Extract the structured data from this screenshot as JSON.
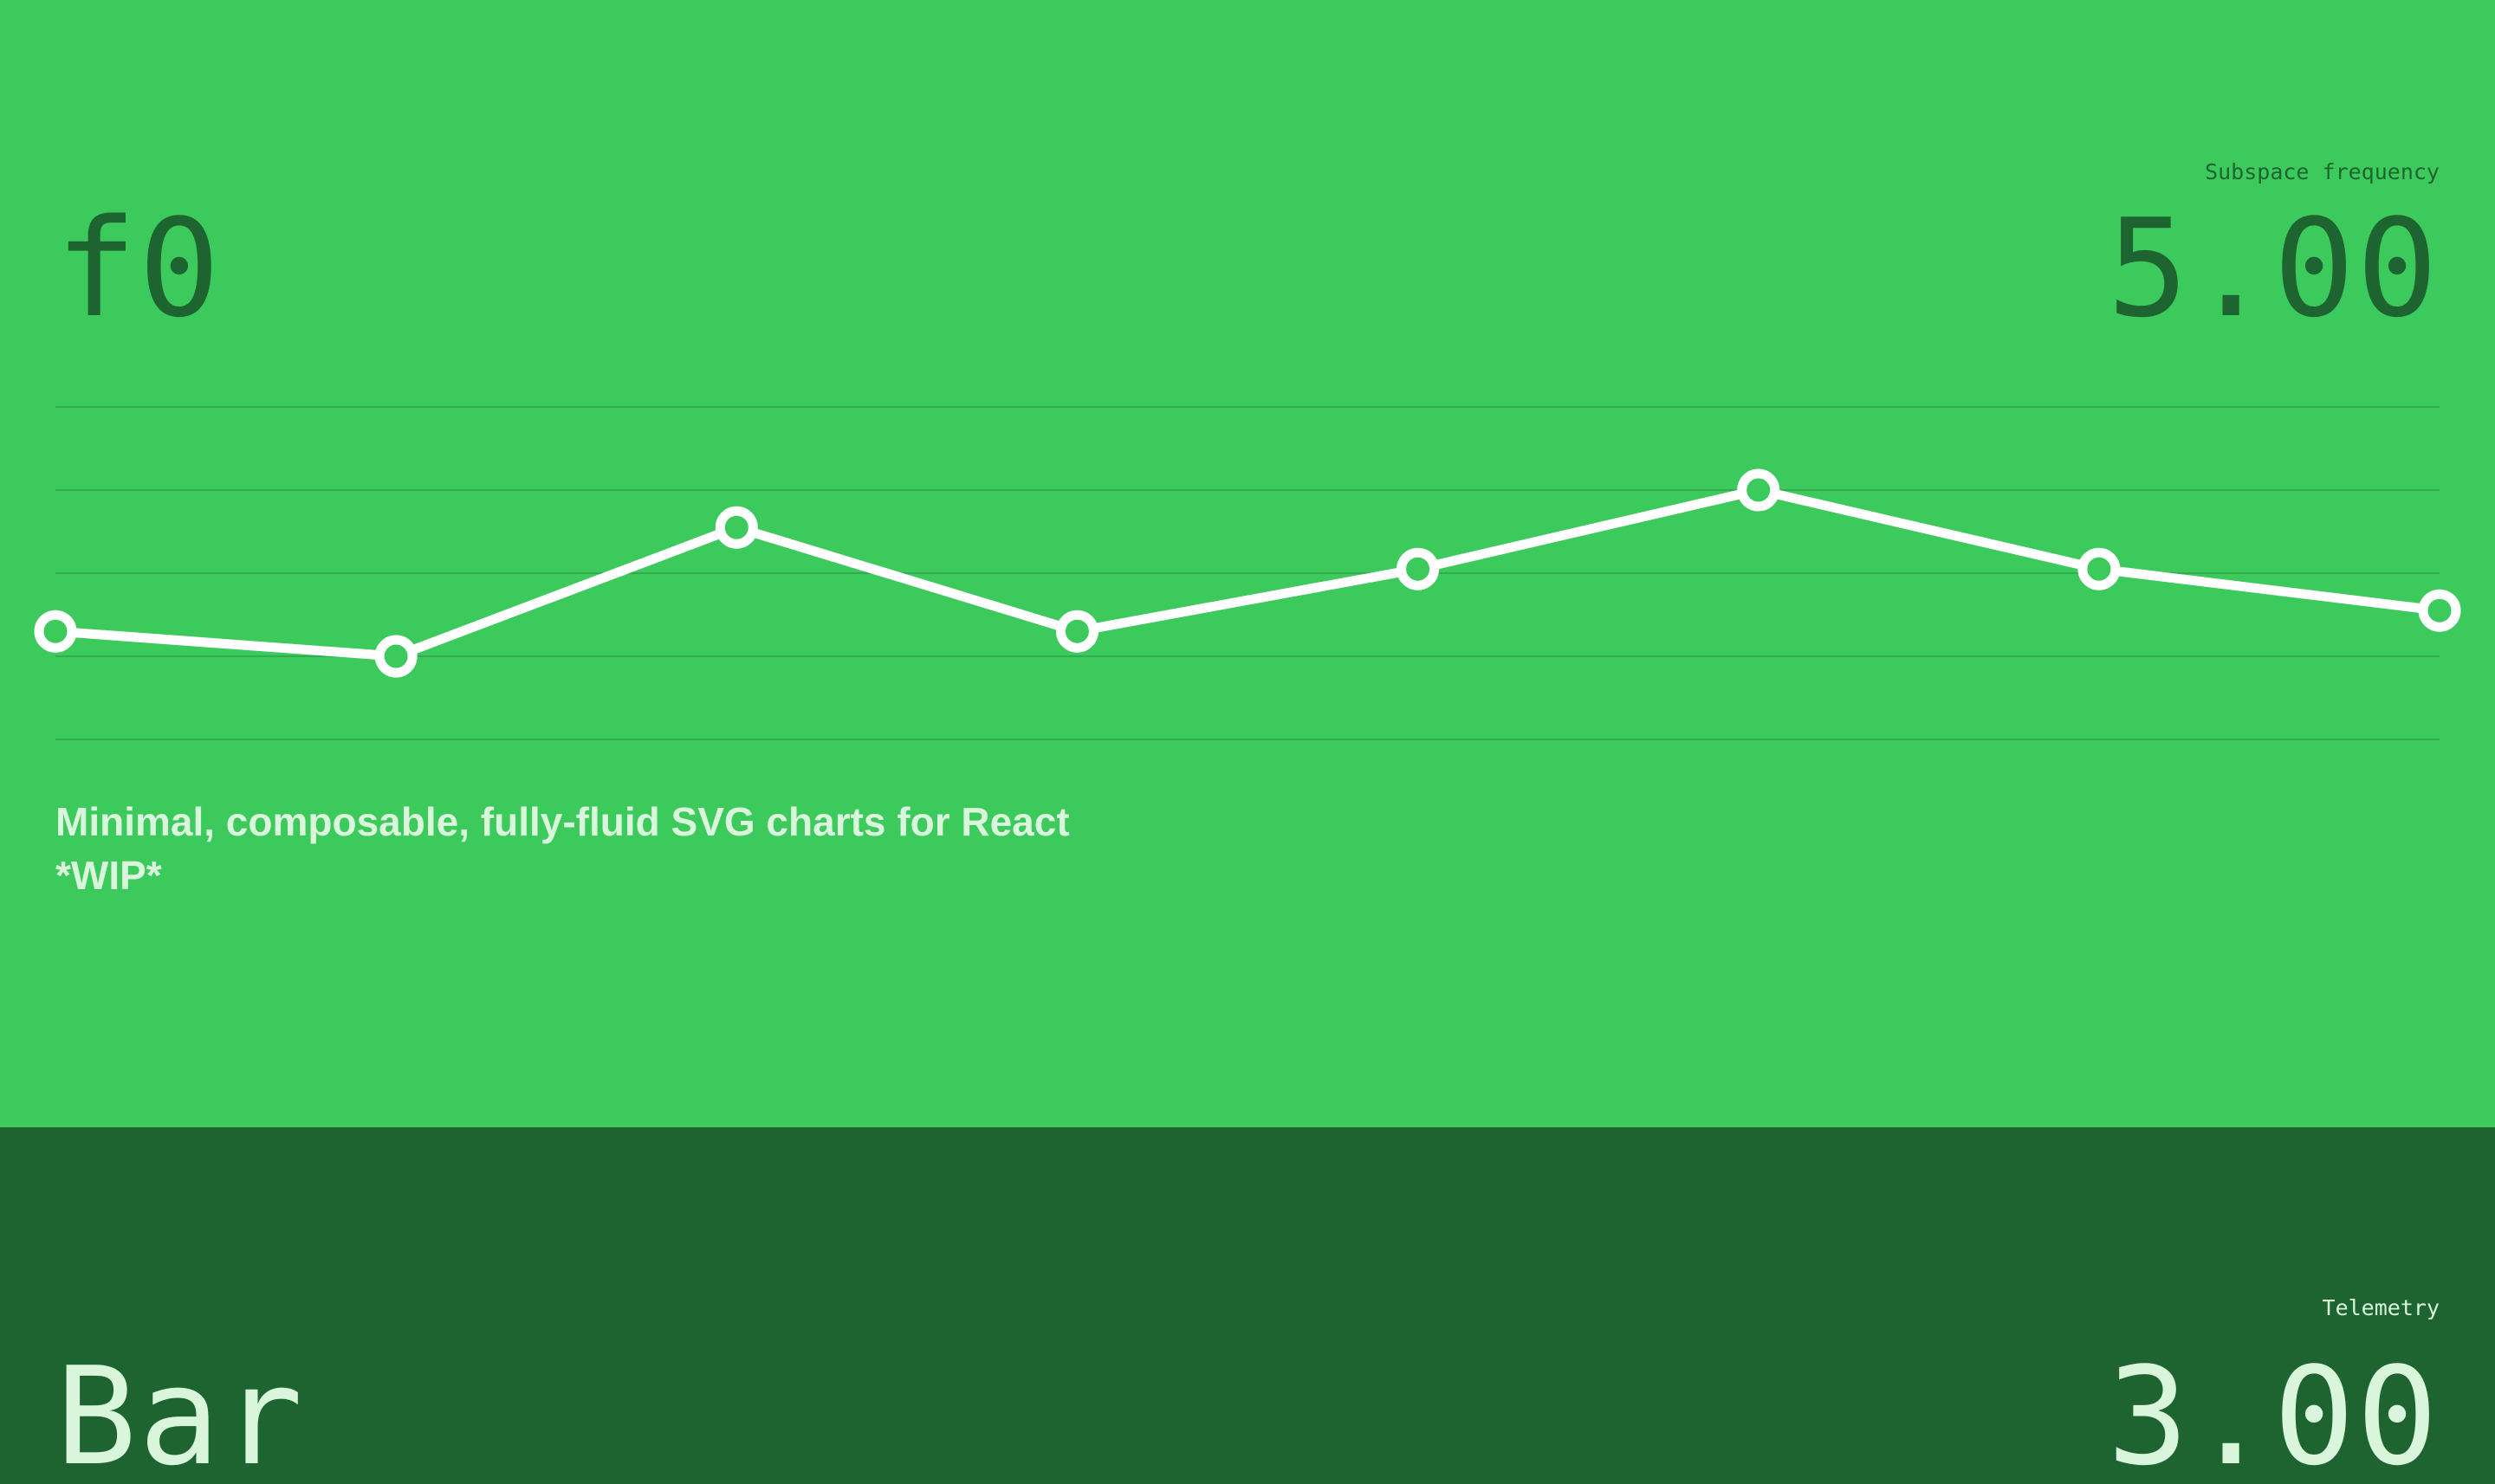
{
  "hero": {
    "title": "f0",
    "metric_label": "Subspace frequency",
    "metric_value": "5.00",
    "tagline_line1": "Minimal, composable, fully-fluid SVG charts for React",
    "tagline_line2": "*WIP*"
  },
  "chart_data": {
    "type": "line",
    "x": [
      0,
      1,
      2,
      3,
      4,
      5,
      6,
      7
    ],
    "values": [
      1.3,
      1.0,
      2.55,
      1.3,
      2.05,
      3.0,
      2.05,
      1.55
    ],
    "ylim": [
      0,
      4
    ],
    "grid": true,
    "xlabel": "",
    "ylabel": "",
    "title": ""
  },
  "section2": {
    "title": "Bar",
    "label": "Telemetry",
    "value": "3.00"
  },
  "colors": {
    "hero_bg": "#3dca5c",
    "dark_bg": "#1e6430",
    "dark_text": "#1e6430",
    "light_text": "#d9f6dc",
    "line": "#ffffff",
    "grid": "#35aa50"
  }
}
